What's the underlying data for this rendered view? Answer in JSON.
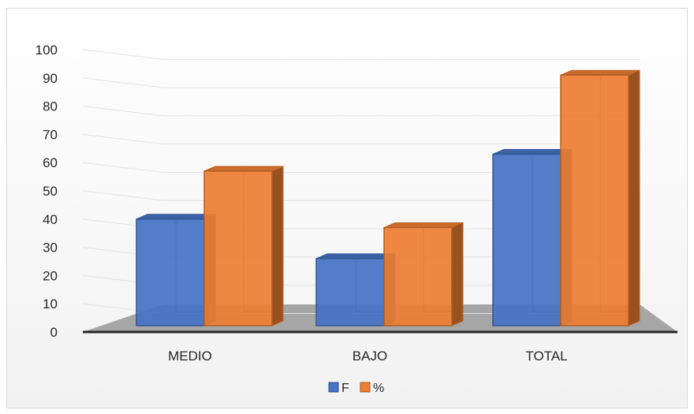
{
  "chart_data": {
    "type": "bar",
    "categories": [
      "MEDIO",
      "BAJO",
      "TOTAL"
    ],
    "series": [
      {
        "name": "F",
        "values": [
          40,
          26,
          63
        ]
      },
      {
        "name": "%",
        "values": [
          57,
          37,
          91
        ]
      }
    ],
    "ylim": [
      0,
      100
    ],
    "yticks": [
      0,
      10,
      20,
      30,
      40,
      50,
      60,
      70,
      80,
      90,
      100
    ],
    "grid": true,
    "legend": "bottom",
    "colors": {
      "F": "#4472c4",
      "%": "#ed7d31"
    }
  }
}
